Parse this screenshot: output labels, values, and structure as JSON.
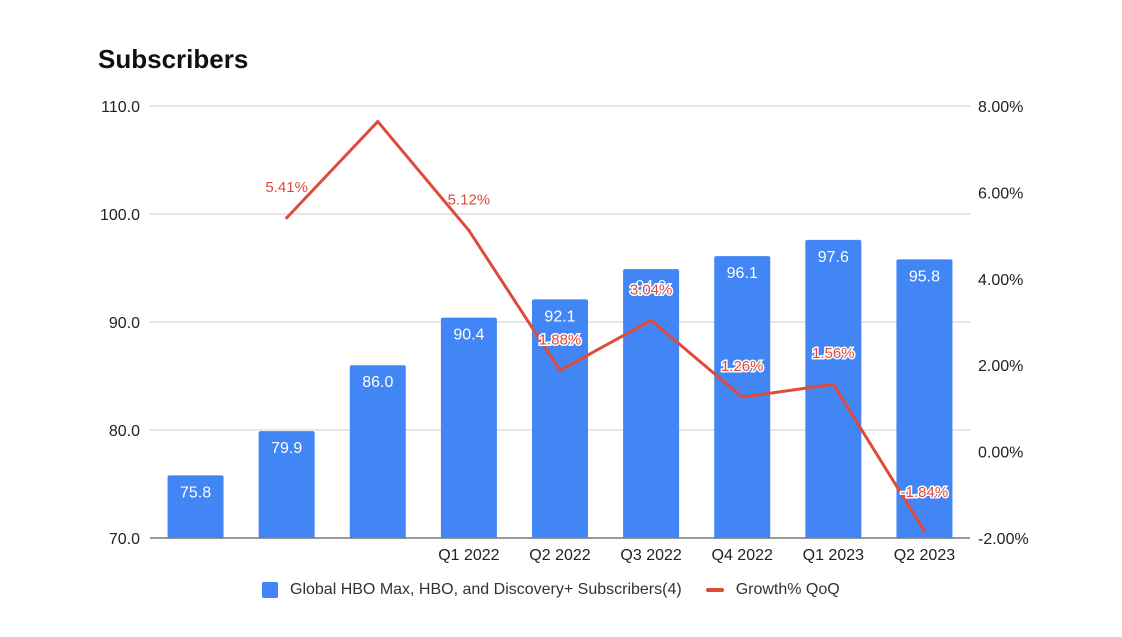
{
  "chart_data": {
    "type": "bar+line",
    "title": "Subscribers",
    "categories": [
      "",
      "",
      "",
      "Q1 2022",
      "Q2 2022",
      "Q3 2022",
      "Q4 2022",
      "Q1 2023",
      "Q2 2023"
    ],
    "series": [
      {
        "name": "Global HBO Max, HBO, and Discovery+ Subscribers(4)",
        "type": "bar",
        "axis": "left",
        "color": "#4285f4",
        "values": [
          75.8,
          79.9,
          86.0,
          90.4,
          92.1,
          94.9,
          96.1,
          97.6,
          95.8
        ],
        "labels": [
          "75.8",
          "79.9",
          "86.0",
          "90.4",
          "92.1",
          "94.9",
          "96.1",
          "97.6",
          "95.8"
        ]
      },
      {
        "name": "Growth% QoQ",
        "type": "line",
        "axis": "right",
        "color": "#e04a3a",
        "values": [
          null,
          5.41,
          7.64,
          5.12,
          1.88,
          3.04,
          1.26,
          1.56,
          -1.84
        ],
        "labels": [
          null,
          "5.41%",
          null,
          "5.12%",
          "1.88%",
          "3.04%",
          "1.26%",
          "1.56%",
          "-1.84%"
        ]
      }
    ],
    "y_left": {
      "min": 70,
      "max": 110,
      "ticks": [
        "70.0",
        "80.0",
        "90.0",
        "100.0",
        "110.0"
      ]
    },
    "y_right": {
      "min": -2,
      "max": 8,
      "ticks": [
        "-2.00%",
        "0.00%",
        "2.00%",
        "4.00%",
        "6.00%",
        "8.00%"
      ]
    },
    "grid": true,
    "legend_position": "bottom"
  }
}
